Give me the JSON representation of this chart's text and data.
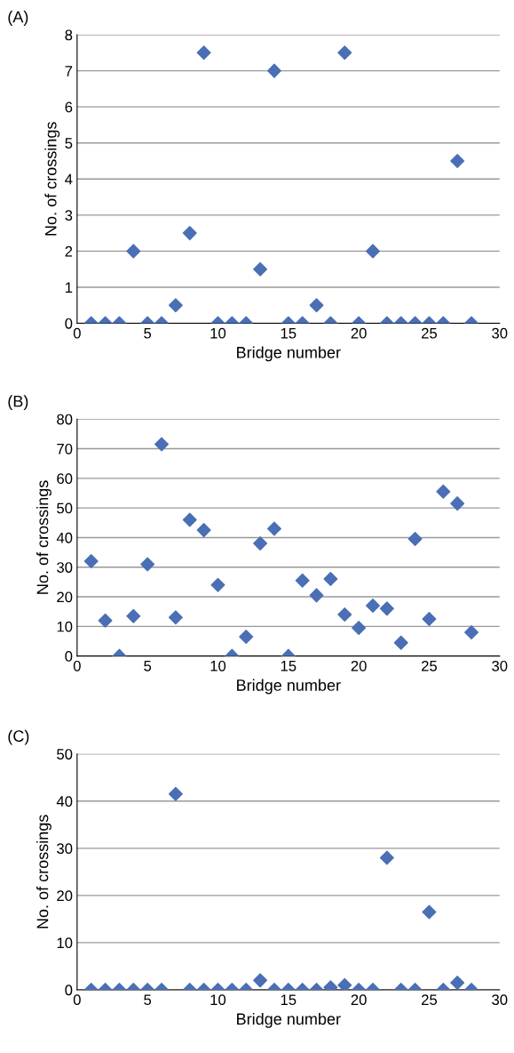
{
  "chart_data": [
    {
      "type": "scatter",
      "title": "(A)",
      "xlabel": "Bridge number",
      "ylabel": "No. of crossings",
      "x": [
        1,
        2,
        3,
        4,
        5,
        6,
        7,
        8,
        9,
        10,
        11,
        12,
        13,
        14,
        15,
        16,
        17,
        18,
        19,
        20,
        21,
        22,
        23,
        24,
        25,
        26,
        27,
        28
      ],
      "series": [
        {
          "color": "#4a6fb5",
          "values": [
            0,
            0,
            0,
            2,
            0,
            0,
            0.5,
            2.5,
            7.5,
            0,
            0,
            0,
            1.5,
            7,
            0,
            0,
            0.5,
            0,
            7.5,
            0,
            2,
            0,
            0,
            0,
            0,
            0,
            4.5,
            0
          ]
        }
      ],
      "xlim": [
        0,
        30
      ],
      "xticks": [
        0,
        5,
        10,
        15,
        20,
        25,
        30
      ],
      "ylim": [
        0,
        8
      ],
      "yticks": [
        0,
        1,
        2,
        3,
        4,
        5,
        6,
        7,
        8
      ],
      "grid": "y",
      "marker": "diamond"
    },
    {
      "type": "scatter",
      "title": "(B)",
      "xlabel": "Bridge number",
      "ylabel": "No. of crossings",
      "x": [
        1,
        2,
        3,
        4,
        5,
        6,
        7,
        8,
        9,
        10,
        11,
        12,
        13,
        14,
        15,
        16,
        17,
        18,
        19,
        20,
        21,
        22,
        23,
        24,
        25,
        26,
        27,
        28
      ],
      "series": [
        {
          "color": "#4a6fb5",
          "values": [
            32,
            12,
            0,
            13.5,
            31,
            71.5,
            13,
            46,
            42.5,
            24,
            0,
            6.5,
            38,
            43,
            0,
            25.5,
            20.5,
            26,
            14,
            9.5,
            17,
            16,
            4.5,
            39.5,
            12.5,
            55.5,
            51.5,
            8
          ]
        }
      ],
      "xlim": [
        0,
        30
      ],
      "xticks": [
        0,
        5,
        10,
        15,
        20,
        25,
        30
      ],
      "ylim": [
        0,
        80
      ],
      "yticks": [
        0,
        10,
        20,
        30,
        40,
        50,
        60,
        70,
        80
      ],
      "grid": "y",
      "marker": "diamond"
    },
    {
      "type": "scatter",
      "title": "(C)",
      "xlabel": "Bridge number",
      "ylabel": "No. of crossings",
      "x": [
        1,
        2,
        3,
        4,
        5,
        6,
        7,
        8,
        9,
        10,
        11,
        12,
        13,
        14,
        15,
        16,
        17,
        18,
        19,
        20,
        21,
        22,
        23,
        24,
        25,
        26,
        27,
        28
      ],
      "series": [
        {
          "color": "#4a6fb5",
          "values": [
            0,
            0,
            0,
            0,
            0,
            0,
            41.5,
            0,
            0,
            0,
            0,
            0,
            2,
            0,
            0,
            0,
            0,
            0.5,
            1,
            0,
            0,
            28,
            0,
            0,
            16.5,
            0,
            1.5,
            0
          ]
        }
      ],
      "xlim": [
        0,
        30
      ],
      "xticks": [
        0,
        5,
        10,
        15,
        20,
        25,
        30
      ],
      "ylim": [
        0,
        50
      ],
      "yticks": [
        0,
        10,
        20,
        30,
        40,
        50
      ],
      "grid": "y",
      "marker": "diamond"
    }
  ]
}
